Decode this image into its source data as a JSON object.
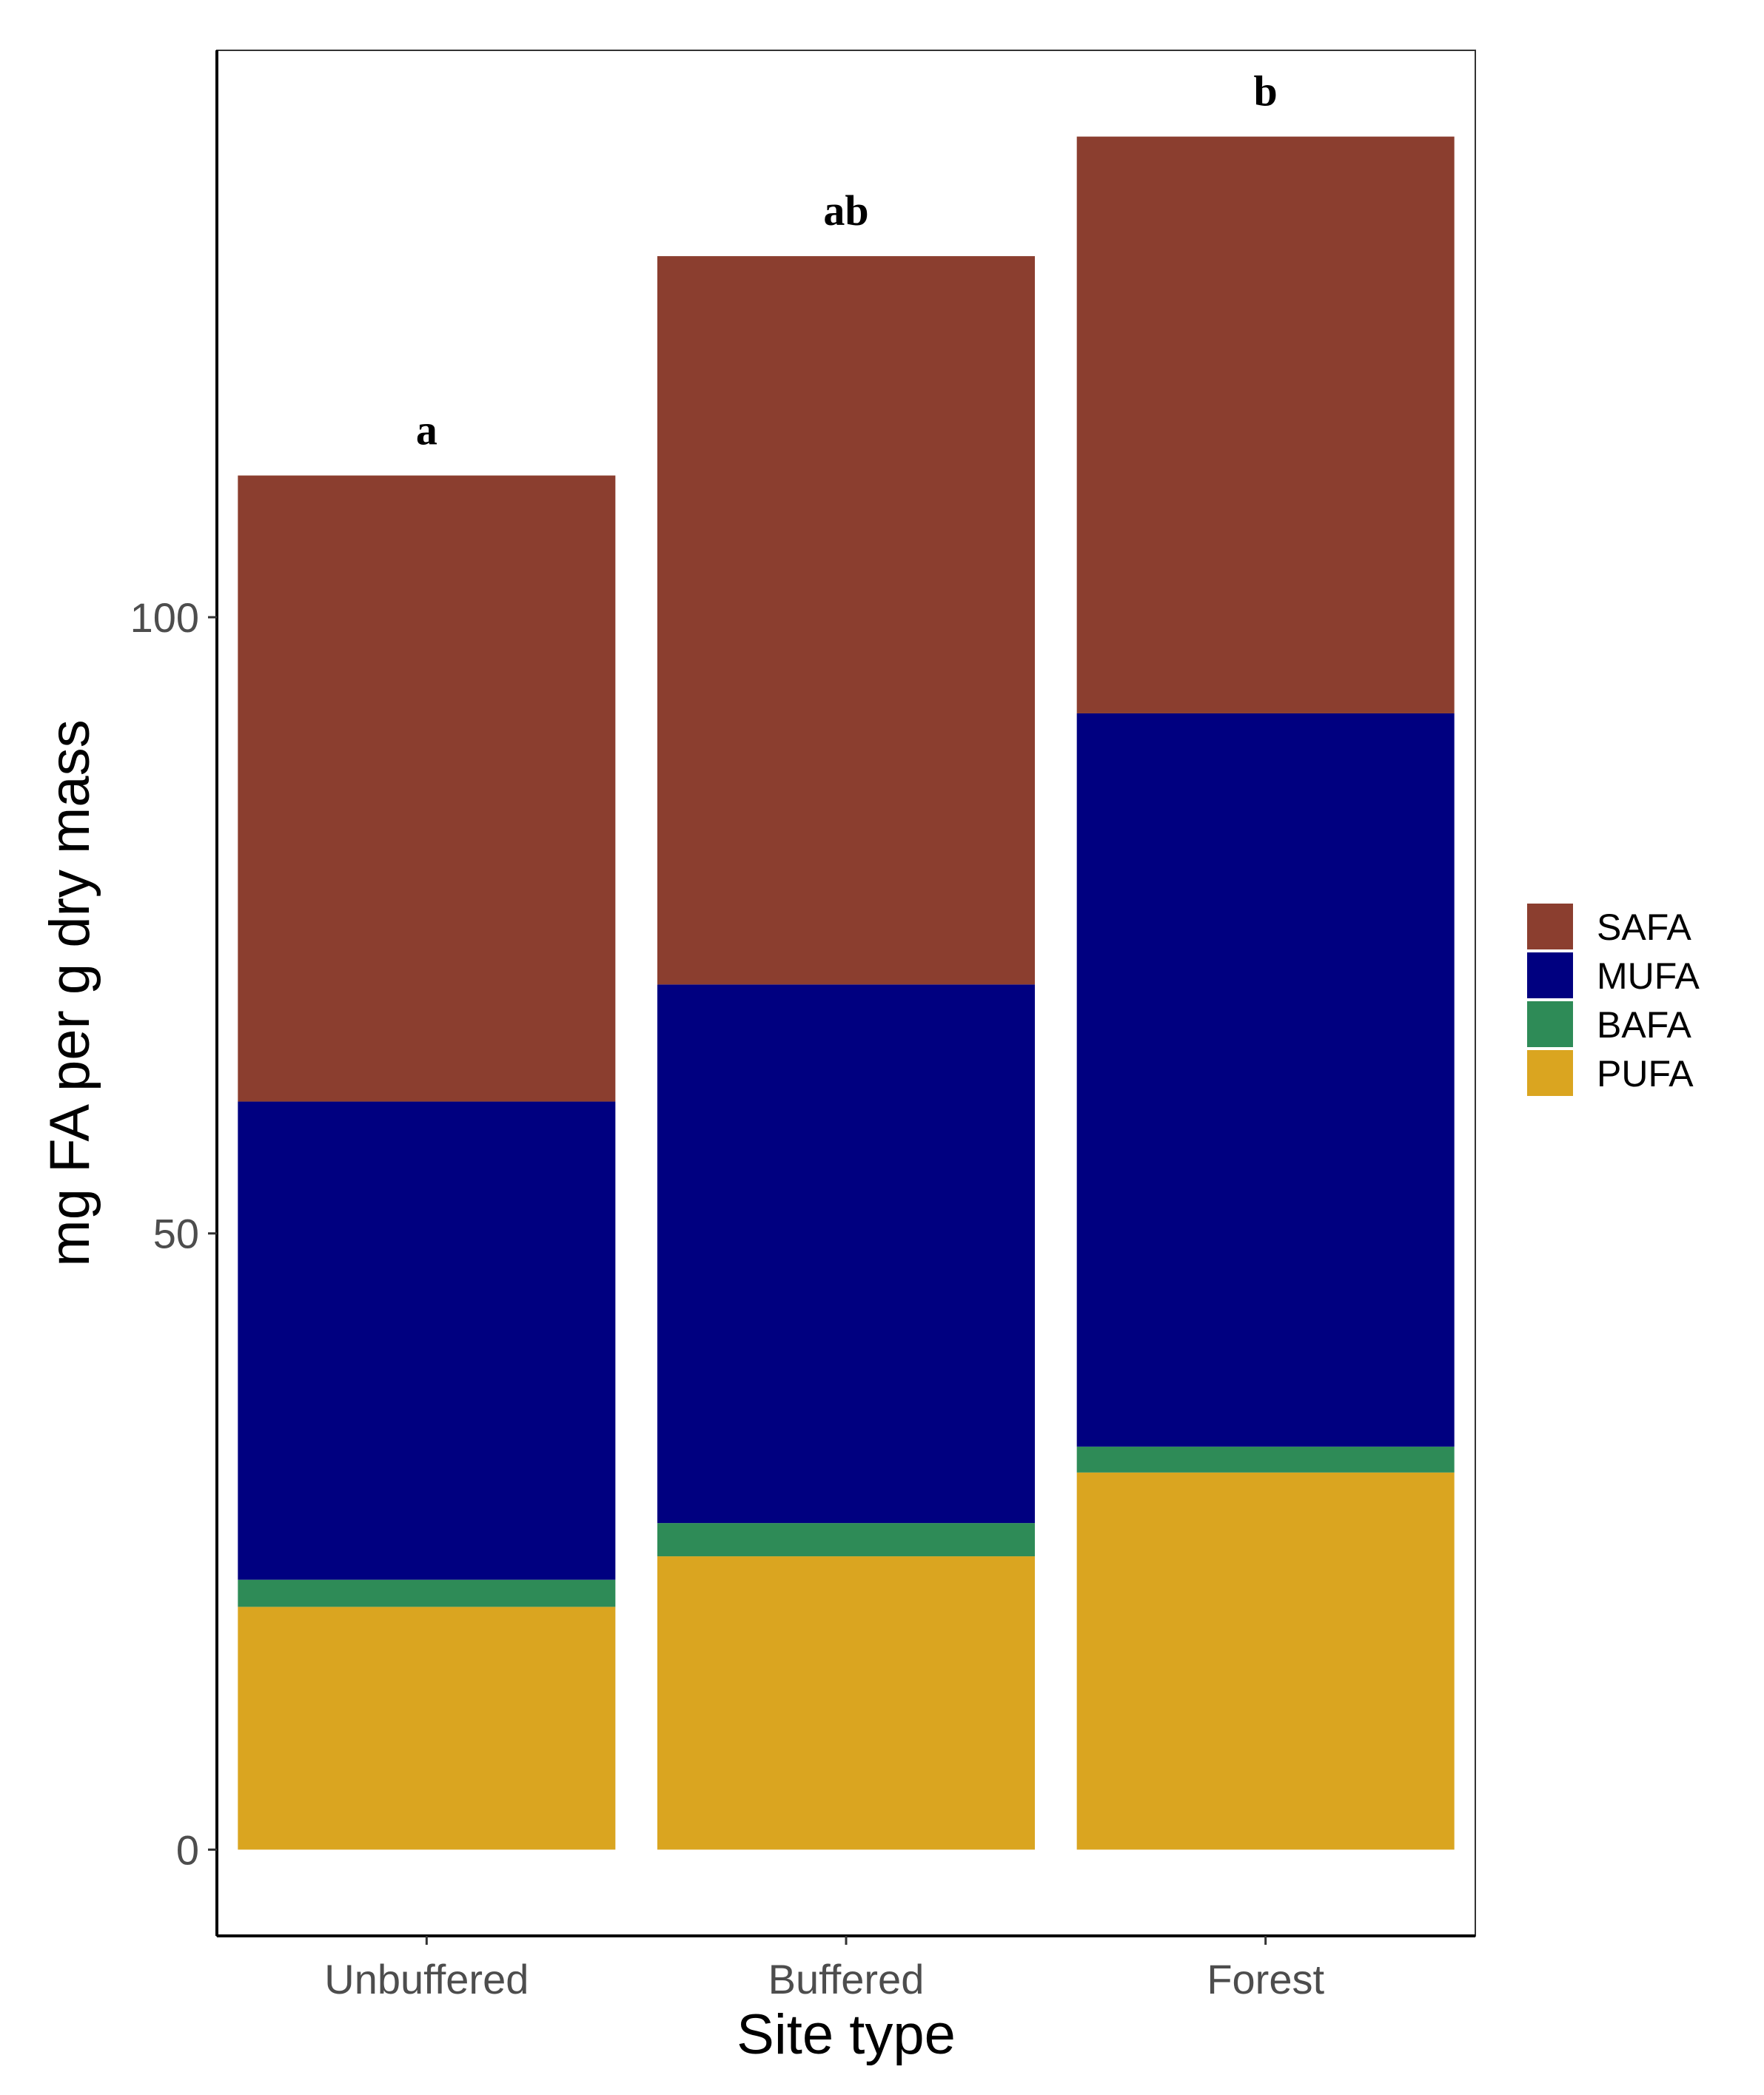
{
  "chart_data": {
    "type": "bar",
    "stacked": true,
    "title": "",
    "xlabel": "Site type",
    "ylabel": "mg FA per g dry mass",
    "categories": [
      "Unbuffered",
      "Buffered",
      "Forest"
    ],
    "significance_labels": [
      "a",
      "ab",
      "b"
    ],
    "ylim": [
      -7,
      146
    ],
    "yticks": [
      0,
      50,
      100
    ],
    "legend_position": "right",
    "series": [
      {
        "name": "PUFA",
        "color": "#DAA520",
        "values": [
          19.7,
          23.8,
          30.6
        ]
      },
      {
        "name": "BAFA",
        "color": "#2E8B57",
        "values": [
          2.2,
          2.7,
          2.1
        ]
      },
      {
        "name": "MUFA",
        "color": "#000080",
        "values": [
          38.8,
          43.7,
          59.5
        ]
      },
      {
        "name": "SAFA",
        "color": "#8B3E2F",
        "values": [
          50.8,
          59.1,
          46.8
        ]
      }
    ],
    "legend_order": [
      "SAFA",
      "MUFA",
      "BAFA",
      "PUFA"
    ]
  }
}
